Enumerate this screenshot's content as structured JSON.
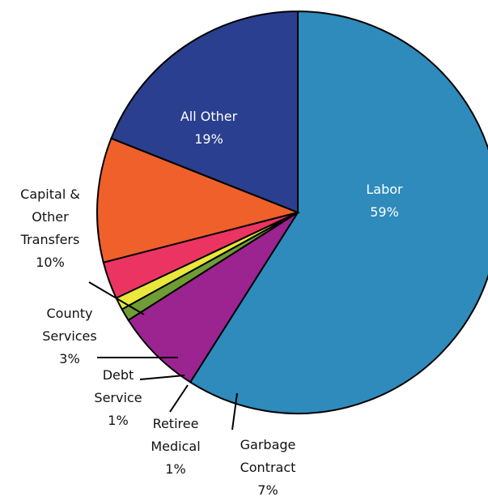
{
  "chart_data": {
    "type": "pie",
    "categories": [
      "Labor",
      "Garbage Contract",
      "Retiree Medical",
      "Debt Service",
      "County Services",
      "Capital & Other Transfers",
      "All Other"
    ],
    "values": [
      59,
      7,
      1,
      1,
      3,
      10,
      19
    ],
    "value_labels": [
      "59%",
      "7%",
      "1%",
      "1%",
      "3%",
      "10%",
      "19%"
    ],
    "colors": [
      "#2e8bbb",
      "#9b2490",
      "#6f9c34",
      "#e9e83b",
      "#ec3463",
      "#f0602b",
      "#2a3f8f"
    ]
  }
}
